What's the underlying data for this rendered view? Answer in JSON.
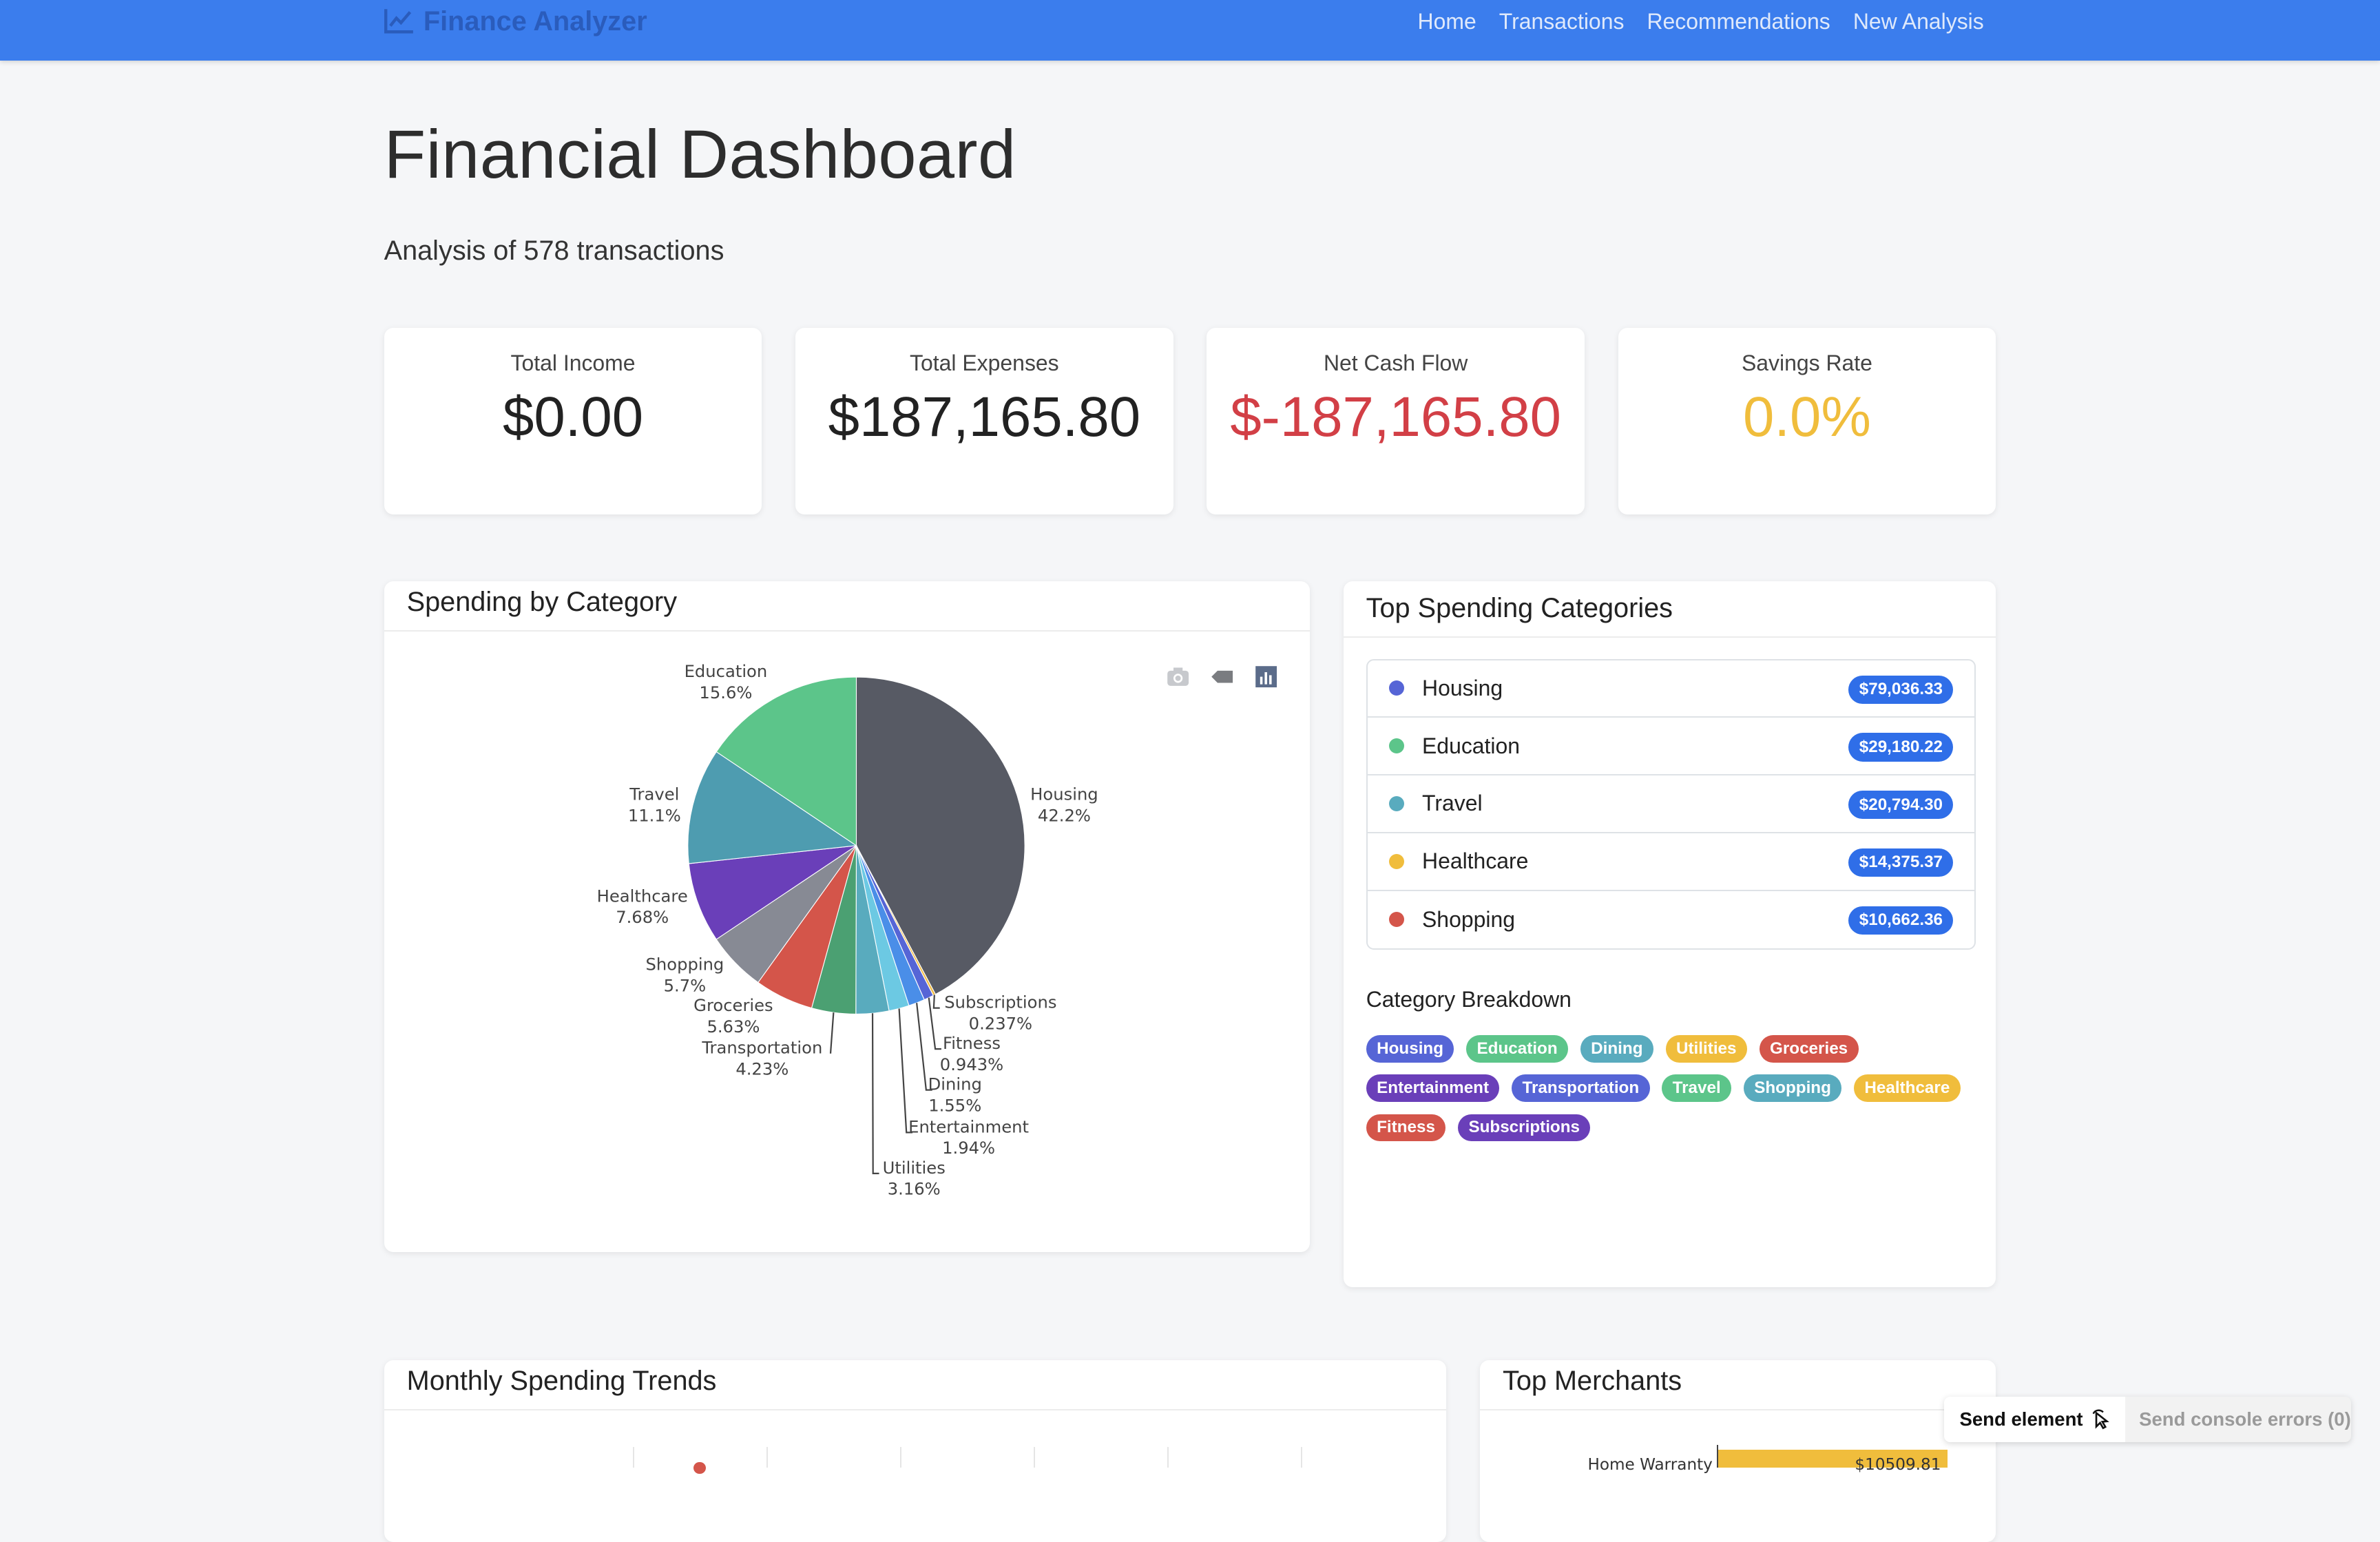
{
  "navbar": {
    "brand": "Finance Analyzer",
    "links": [
      "Home",
      "Transactions",
      "Recommendations",
      "New Analysis"
    ]
  },
  "header": {
    "title": "Financial Dashboard",
    "subtitle": "Analysis of 578 transactions"
  },
  "stats": [
    {
      "label": "Total Income",
      "value": "$0.00",
      "color": "#222222"
    },
    {
      "label": "Total Expenses",
      "value": "$187,165.80",
      "color": "#222222"
    },
    {
      "label": "Net Cash Flow",
      "value": "$-187,165.80",
      "color": "#d23f46"
    },
    {
      "label": "Savings Rate",
      "value": "0.0%",
      "color": "#f0bd3c"
    }
  ],
  "spending_card": {
    "title": "Spending by Category",
    "modebar_icons": [
      "camera-icon",
      "tag-icon",
      "bar-chart-icon"
    ]
  },
  "chart_data": {
    "type": "pie",
    "slices": [
      {
        "label": "Housing",
        "percent": "42.2%",
        "value": 42.2,
        "color": "#575a64"
      },
      {
        "label": "Subscriptions",
        "percent": "0.237%",
        "value": 0.237,
        "color": "#f1bd46"
      },
      {
        "label": "Fitness",
        "percent": "0.943%",
        "value": 0.943,
        "color": "#5665d6"
      },
      {
        "label": "Dining",
        "percent": "1.55%",
        "value": 1.55,
        "color": "#4a8ee8"
      },
      {
        "label": "Entertainment",
        "percent": "1.94%",
        "value": 1.94,
        "color": "#6cc9e3"
      },
      {
        "label": "Utilities",
        "percent": "3.16%",
        "value": 3.16,
        "color": "#59abbe"
      },
      {
        "label": "Transportation",
        "percent": "4.23%",
        "value": 4.23,
        "color": "#4ba072"
      },
      {
        "label": "Groceries",
        "percent": "5.63%",
        "value": 5.63,
        "color": "#d4554a"
      },
      {
        "label": "Shopping",
        "percent": "5.7%",
        "value": 5.7,
        "color": "#878a94"
      },
      {
        "label": "Healthcare",
        "percent": "7.68%",
        "value": 7.68,
        "color": "#6a3fb9"
      },
      {
        "label": "Travel",
        "percent": "11.1%",
        "value": 11.1,
        "color": "#4e9cb0"
      },
      {
        "label": "Education",
        "percent": "15.6%",
        "value": 15.6,
        "color": "#5cc58a"
      }
    ]
  },
  "top_categories": {
    "title": "Top Spending Categories",
    "items": [
      {
        "name": "Housing",
        "amount": "$79,036.33",
        "color": "#5665d6"
      },
      {
        "name": "Education",
        "amount": "$29,180.22",
        "color": "#5cc58a"
      },
      {
        "name": "Travel",
        "amount": "$20,794.30",
        "color": "#59abbe"
      },
      {
        "name": "Healthcare",
        "amount": "$14,375.37",
        "color": "#f0bd3c"
      },
      {
        "name": "Shopping",
        "amount": "$10,662.36",
        "color": "#d4554a"
      }
    ],
    "breakdown_title": "Category Breakdown",
    "tags": [
      {
        "name": "Housing",
        "color": "#5665d6"
      },
      {
        "name": "Education",
        "color": "#5cc58a"
      },
      {
        "name": "Dining",
        "color": "#59abbe"
      },
      {
        "name": "Utilities",
        "color": "#f0bd3c"
      },
      {
        "name": "Groceries",
        "color": "#d4554a"
      },
      {
        "name": "Entertainment",
        "color": "#6a3fb9"
      },
      {
        "name": "Transportation",
        "color": "#5665d6"
      },
      {
        "name": "Travel",
        "color": "#5cc58a"
      },
      {
        "name": "Shopping",
        "color": "#59abbe"
      },
      {
        "name": "Healthcare",
        "color": "#f0bd3c"
      },
      {
        "name": "Fitness",
        "color": "#d4554a"
      },
      {
        "name": "Subscriptions",
        "color": "#6a3fb9"
      }
    ]
  },
  "monthly": {
    "title": "Monthly Spending Trends"
  },
  "merchants": {
    "title": "Top Merchants",
    "first_label": "Home Warranty",
    "first_value": "$10509.81",
    "bar_color": "#f0bd3c"
  },
  "widget": {
    "send_element": "Send element",
    "send_console": "Send console errors (0)"
  }
}
